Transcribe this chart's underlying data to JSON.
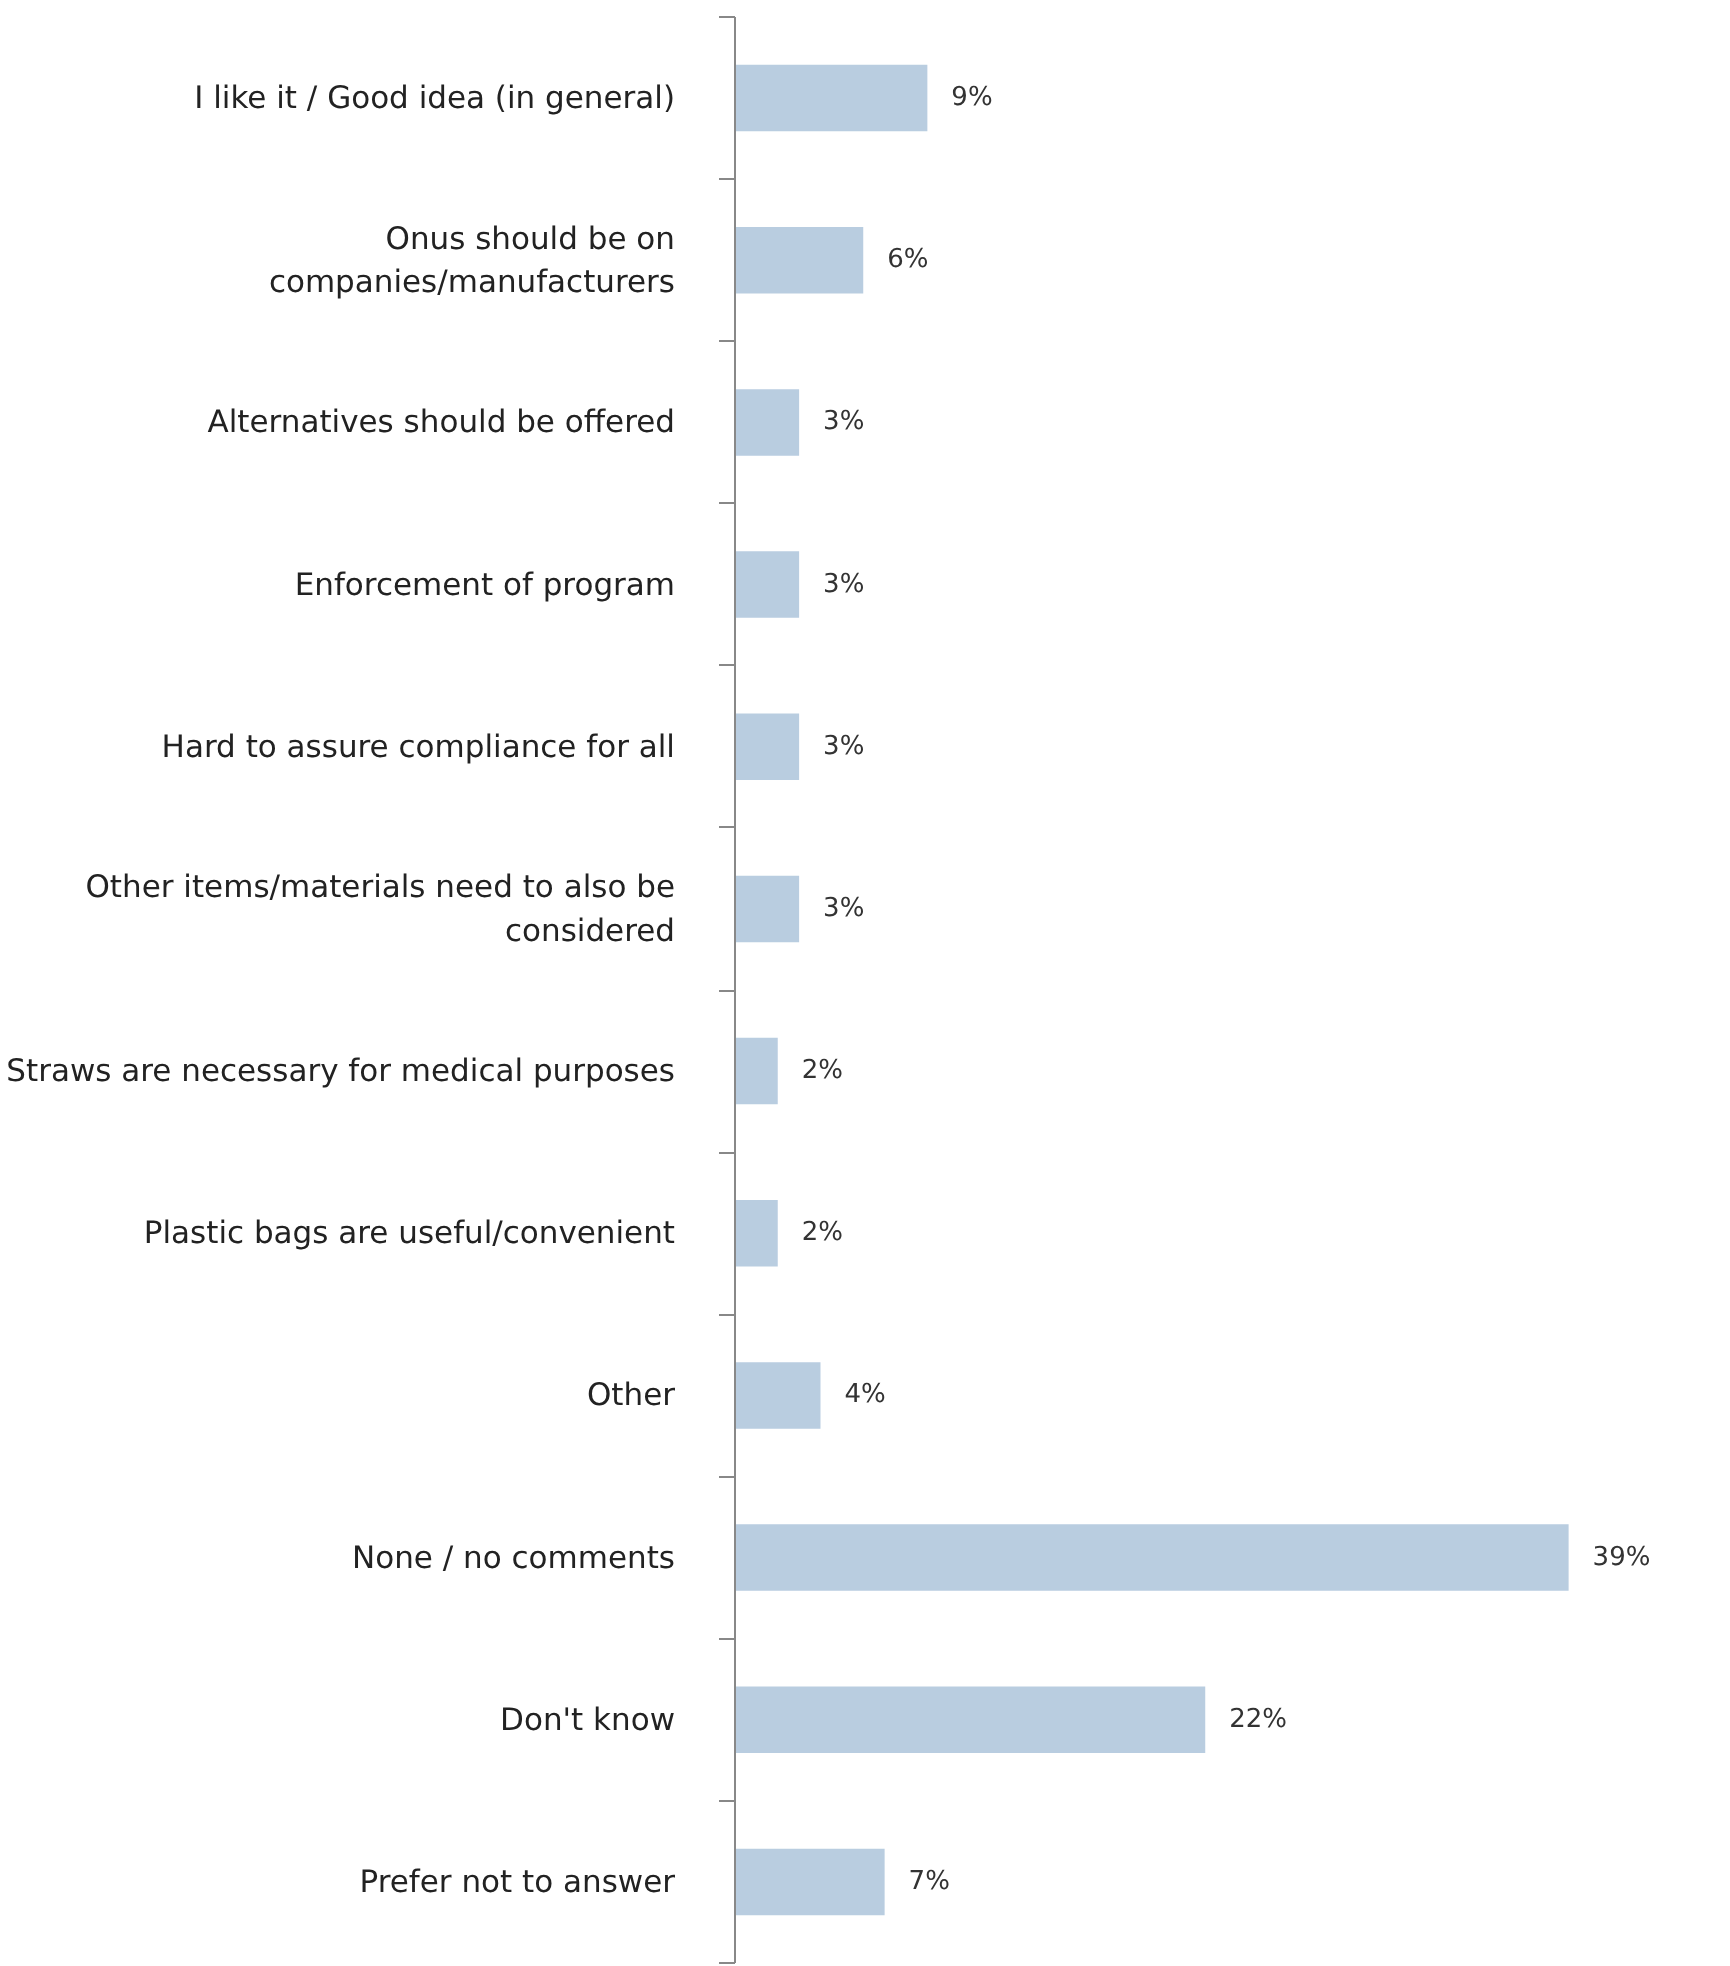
{
  "chart_data": {
    "type": "bar",
    "orientation": "horizontal",
    "tick_labels": "y",
    "categories": [
      "I like it / Good idea (in general)",
      "Onus should be on\ncompanies/manufacturers",
      "Alternatives should be offered",
      "Enforcement of program",
      "Hard to assure compliance for all",
      "Other items/materials need to also be\nconsidered",
      "Straws are necessary for medical purposes",
      "Plastic bags are useful/convenient",
      "Other",
      "None / no comments",
      "Don't know",
      "Prefer not to answer"
    ],
    "values": [
      9,
      6,
      3,
      3,
      3,
      3,
      2,
      2,
      4,
      39,
      22,
      7
    ],
    "value_labels": [
      "9%",
      "6%",
      "3%",
      "3%",
      "3%",
      "3%",
      "2%",
      "2%",
      "4%",
      "39%",
      "22%",
      "7%"
    ],
    "color": "#b9cde0",
    "grid": false
  }
}
